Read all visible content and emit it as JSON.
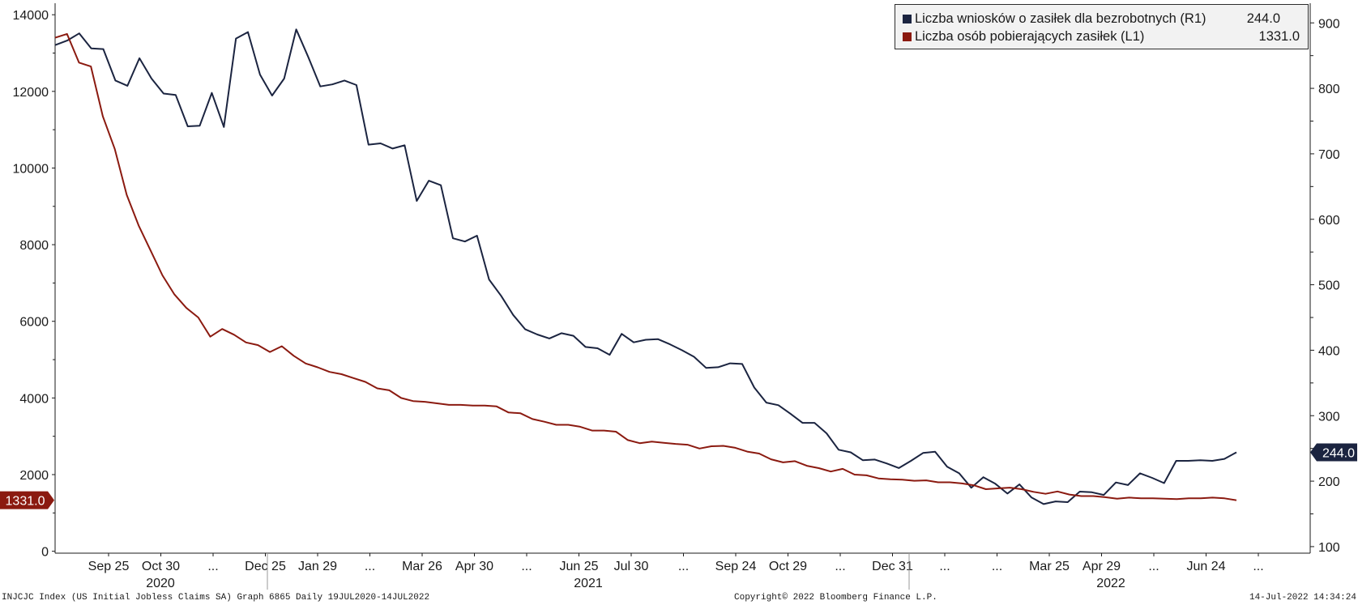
{
  "chart_data": {
    "type": "line",
    "left_axis": {
      "ticks": [
        0,
        2000,
        4000,
        6000,
        8000,
        10000,
        12000,
        14000
      ],
      "ylim": [
        -50,
        14300
      ]
    },
    "right_axis": {
      "ticks": [
        100,
        200,
        300,
        400,
        500,
        600,
        700,
        800,
        900
      ],
      "ylim": [
        90,
        930
      ]
    },
    "x_tick_labels": [
      "Sep 25",
      "Oct 30",
      "...",
      "Dec 25",
      "Jan 29",
      "...",
      "Mar 26",
      "Apr 30",
      "...",
      "Jun 25",
      "Jul 30",
      "...",
      "Sep 24",
      "Oct 29",
      "...",
      "Dec 31",
      "...",
      "...",
      "Mar 25",
      "Apr 29",
      "...",
      "Jun 24",
      "..."
    ],
    "year_labels": [
      "2020",
      "2021",
      "2022"
    ],
    "series": [
      {
        "name": "Liczba wniosków o zasiłek dla bezrobotnych (R1)",
        "axis": "right",
        "color": "#1b2440",
        "last_value": "244.0",
        "values": [
          866,
          873,
          884,
          861,
          860,
          812,
          804,
          846,
          815,
          792,
          790,
          742,
          743,
          793,
          741,
          876,
          886,
          821,
          789,
          815,
          890,
          848,
          803,
          806,
          812,
          805,
          714,
          716,
          708,
          713,
          628,
          659,
          652,
          571,
          566,
          575,
          508,
          483,
          454,
          432,
          424,
          418,
          426,
          422,
          405,
          403,
          393,
          425,
          412,
          416,
          417,
          409,
          400,
          390,
          373,
          374,
          380,
          379,
          343,
          320,
          316,
          303,
          289,
          289,
          273,
          248,
          244,
          232,
          233,
          227,
          220,
          231,
          243,
          245,
          222,
          212,
          190,
          206,
          196,
          181,
          195,
          175,
          165,
          169,
          168,
          184,
          183,
          179,
          198,
          194,
          212,
          205,
          197,
          231,
          231,
          232,
          231,
          234,
          244
        ]
      },
      {
        "name": "Liczba osób pobierających zasiłek (L1)",
        "axis": "left",
        "color": "#8b1a10",
        "last_value": "1331.0",
        "values": [
          13400,
          13500,
          12750,
          12650,
          11350,
          10500,
          9300,
          8500,
          7850,
          7200,
          6700,
          6350,
          6100,
          5600,
          5800,
          5650,
          5450,
          5380,
          5200,
          5350,
          5100,
          4900,
          4800,
          4680,
          4620,
          4520,
          4420,
          4250,
          4200,
          4000,
          3920,
          3900,
          3860,
          3820,
          3820,
          3800,
          3800,
          3780,
          3620,
          3600,
          3450,
          3380,
          3300,
          3300,
          3250,
          3150,
          3150,
          3120,
          2900,
          2820,
          2860,
          2830,
          2800,
          2780,
          2680,
          2740,
          2750,
          2700,
          2600,
          2550,
          2400,
          2320,
          2350,
          2230,
          2170,
          2080,
          2150,
          2000,
          1980,
          1900,
          1880,
          1870,
          1840,
          1850,
          1800,
          1800,
          1770,
          1720,
          1620,
          1640,
          1660,
          1620,
          1550,
          1500,
          1560,
          1480,
          1440,
          1440,
          1410,
          1370,
          1400,
          1380,
          1380,
          1370,
          1360,
          1380,
          1380,
          1400,
          1380,
          1331
        ]
      }
    ],
    "legend_placement": "top-right",
    "grid": false
  },
  "footer": {
    "left": "INJCJC Index (US Initial Jobless Claims SA) Graph 6865  Daily 19JUL2020-14JUL2022",
    "center": "Copyright© 2022 Bloomberg Finance L.P.",
    "right": "14-Jul-2022 14:34:24"
  }
}
